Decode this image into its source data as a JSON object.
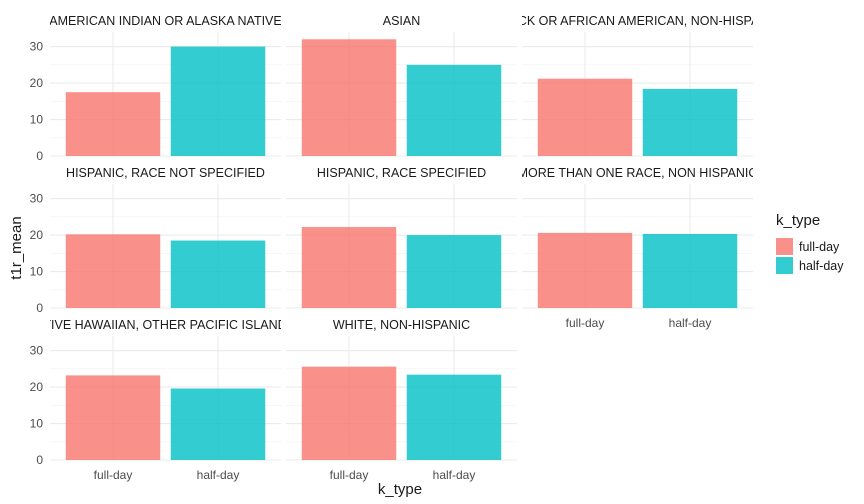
{
  "chart_data": {
    "type": "bar",
    "xlabel": "k_type",
    "ylabel": "t1r_mean",
    "ylim": [
      0,
      34
    ],
    "yticks": [
      0,
      10,
      20,
      30
    ],
    "grid": true,
    "legend": {
      "title": "k_type",
      "placement": "right",
      "entries": [
        "full-day",
        "half-day"
      ]
    },
    "colors": {
      "full-day": "#F8766D",
      "half-day": "#00BFC4"
    },
    "categories": [
      "full-day",
      "half-day"
    ],
    "panels": [
      {
        "title": "AMERICAN INDIAN OR ALASKA NATIVE",
        "values": [
          17.5,
          30.0
        ]
      },
      {
        "title": "ASIAN",
        "values": [
          32.0,
          25.0
        ]
      },
      {
        "title": "BLACK OR AFRICAN AMERICAN, NON-HISPANIC",
        "values": [
          21.2,
          18.4
        ]
      },
      {
        "title": "HISPANIC, RACE NOT SPECIFIED",
        "values": [
          20.2,
          18.5
        ]
      },
      {
        "title": "HISPANIC, RACE SPECIFIED",
        "values": [
          22.2,
          20.0
        ]
      },
      {
        "title": "MORE THAN ONE RACE, NON HISPANIC",
        "values": [
          20.6,
          20.3
        ]
      },
      {
        "title": "NATIVE HAWAIIAN, OTHER PACIFIC ISLANDER",
        "values": [
          23.2,
          19.6
        ]
      },
      {
        "title": "WHITE, NON-HISPANIC",
        "values": [
          25.6,
          23.4
        ]
      }
    ]
  }
}
